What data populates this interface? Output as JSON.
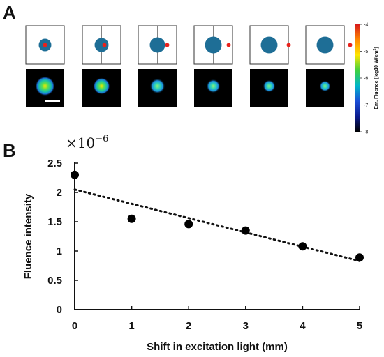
{
  "panel_a": {
    "letter": "A",
    "colorbar": {
      "title_prefix": "Em. Fluence [log10 W/cm",
      "title_sup": "2",
      "title_suffix": "]",
      "ticks": [
        "-4",
        "-5",
        "-6",
        "-7",
        "-8"
      ],
      "colors": [
        "#d7191c",
        "#ff8800",
        "#ffe600",
        "#3fd13f",
        "#00b7c9",
        "#1a4fd8",
        "#0b1b8f",
        "#000000"
      ]
    },
    "schematic_count": 6,
    "circle_color": "#1e6e96",
    "dot_color": "#e8221c",
    "scale_bar_color": "#ffffff"
  },
  "panel_b": {
    "letter": "B",
    "multiplier_base": "×10",
    "multiplier_exp": "−6"
  },
  "chart_data": {
    "type": "scatter",
    "title": "",
    "xlabel": "Shift in excitation light (mm)",
    "ylabel": "Fluence intensity",
    "xlim": [
      0,
      5
    ],
    "ylim": [
      0,
      2.5
    ],
    "xticks": [
      "0",
      "1",
      "2",
      "3",
      "4",
      "5"
    ],
    "yticks": [
      "0",
      "0.5",
      "1",
      "1.5",
      "2",
      "2.5"
    ],
    "x": [
      0,
      1,
      2,
      3,
      4,
      5
    ],
    "y": [
      2.3,
      1.55,
      1.46,
      1.35,
      1.08,
      0.89
    ],
    "trendline": {
      "style": "dotted",
      "x": [
        0,
        5
      ],
      "y": [
        2.05,
        0.83
      ]
    },
    "grid": false
  }
}
